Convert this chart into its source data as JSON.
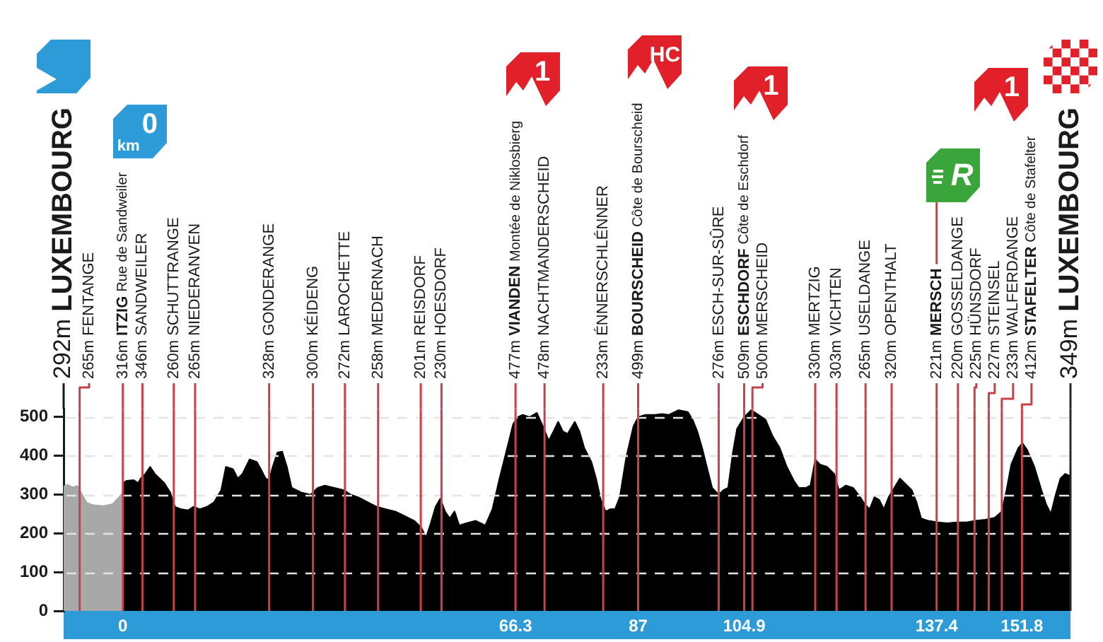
{
  "chart_data": {
    "type": "area",
    "xlim": [
      -10,
      160
    ],
    "xticks": [
      0,
      66.3,
      87,
      104.9,
      137.4,
      151.8
    ],
    "ylim": [
      0,
      520
    ],
    "yticks": [
      0,
      100,
      200,
      300,
      400,
      500
    ],
    "grid": "y",
    "series": [
      {
        "color": "#a8a8a8",
        "x": [
          -10,
          -9.3,
          -8.5,
          -7.7,
          -6.9,
          -6.1,
          -4.9,
          -3.3,
          -1.7,
          -0.5,
          0
        ],
        "values": [
          320,
          325,
          318,
          322,
          300,
          278,
          272,
          270,
          275,
          295,
          305
        ]
      },
      {
        "color": "#000000",
        "x": [
          0,
          0.6,
          1.8,
          2.6,
          3.0,
          3.8,
          4.6,
          5.4,
          6.2,
          7.0,
          8.0,
          8.8,
          9.8,
          11.0,
          11.9,
          13.0,
          14.2,
          15.4,
          16.6,
          17.4,
          18.6,
          19.4,
          20.2,
          21.4,
          22.6,
          23.3,
          24.1,
          24.7,
          25.3,
          26.1,
          26.9,
          27.7,
          28.5,
          30.1,
          31.7,
          32.9,
          34.1,
          35.7,
          37.3,
          38.5,
          39.7,
          41.3,
          42.9,
          44.4,
          46.0,
          47.6,
          49.2,
          50.4,
          51.2,
          52.0,
          52.8,
          53.6,
          54.4,
          55.2,
          56.0,
          56.8,
          58.0,
          59.6,
          61.2,
          62.4,
          63.5,
          64.7,
          65.9,
          66.7,
          67.5,
          68.7,
          69.9,
          71.1,
          71.9,
          72.7,
          73.5,
          74.3,
          75.1,
          76.3,
          77.1,
          77.9,
          79.1,
          79.9,
          80.7,
          81.5,
          82.3,
          83.1,
          83.9,
          85.0,
          86.2,
          87.0,
          88.2,
          89.8,
          91.0,
          92.2,
          93.8,
          95.4,
          96.2,
          97.0,
          97.8,
          98.6,
          99.5,
          100.6,
          101.4,
          102.2,
          103.0,
          103.7,
          104.9,
          106.1,
          107.3,
          108.5,
          109.7,
          110.9,
          112.1,
          113.3,
          114.1,
          115.3,
          116.1,
          116.9,
          117.7,
          118.9,
          120.1,
          120.9,
          122.1,
          123.3,
          124.5,
          125.3,
          126.1,
          126.9,
          127.7,
          128.5,
          129.3,
          130.5,
          131.2,
          132.0,
          133.2,
          134.0,
          134.8,
          136.0,
          137.6,
          139.2,
          140.8,
          142.4,
          144.0,
          145.6,
          147.2,
          148.4,
          149.2,
          150.0,
          151.2,
          151.9,
          152.7,
          153.9,
          155.1,
          155.9,
          156.7,
          157.5,
          158.3,
          159.1,
          160
        ],
        "values": [
          329,
          335,
          337,
          329,
          341,
          353,
          371,
          353,
          341,
          329,
          305,
          268,
          262,
          259,
          268,
          262,
          268,
          280,
          311,
          371,
          365,
          341,
          353,
          390,
          384,
          365,
          341,
          337,
          371,
          408,
          410,
          371,
          317,
          305,
          299,
          317,
          323,
          317,
          311,
          299,
          293,
          280,
          268,
          262,
          256,
          244,
          232,
          214,
          189,
          226,
          268,
          289,
          256,
          238,
          256,
          220,
          226,
          232,
          220,
          262,
          335,
          408,
          481,
          499,
          505,
          499,
          510,
          469,
          438,
          462,
          487,
          462,
          456,
          487,
          462,
          420,
          384,
          341,
          286,
          256,
          262,
          262,
          293,
          396,
          475,
          499,
          505,
          505,
          507,
          505,
          517,
          512,
          493,
          462,
          420,
          371,
          317,
          299,
          311,
          317,
          408,
          469,
          499,
          517,
          505,
          493,
          450,
          420,
          371,
          335,
          317,
          317,
          323,
          390,
          377,
          371,
          353,
          311,
          323,
          317,
          293,
          274,
          262,
          293,
          286,
          262,
          293,
          323,
          341,
          329,
          311,
          280,
          238,
          232,
          228,
          226,
          228,
          228,
          232,
          235,
          240,
          256,
          311,
          377,
          420,
          432,
          414,
          371,
          311,
          274,
          250,
          299,
          341,
          353,
          347
        ]
      }
    ],
    "ref_lines": [
      {
        "axis": "x",
        "value": -7.3,
        "label": "265m FENTANGE",
        "color": "#c8414a"
      },
      {
        "axis": "x",
        "value": 0,
        "label": "316m ITZIG Rue de Sandweiler",
        "color": "#c8414a"
      },
      {
        "axis": "x",
        "value": 3.3,
        "label": "346m SANDWEILER",
        "color": "#c8414a"
      },
      {
        "axis": "x",
        "value": 8.6,
        "label": "260m SCHUTTRANGE",
        "color": "#c8414a"
      },
      {
        "axis": "x",
        "value": 12.2,
        "label": "265m NIEDERANVEN",
        "color": "#c8414a"
      },
      {
        "axis": "x",
        "value": 24.7,
        "label": "328m GONDERANGE",
        "color": "#c8414a"
      },
      {
        "axis": "x",
        "value": 32.1,
        "label": "300m KÉIDENG",
        "color": "#c8414a"
      },
      {
        "axis": "x",
        "value": 37.5,
        "label": "272m LAROCHETTE",
        "color": "#c8414a"
      },
      {
        "axis": "x",
        "value": 43.1,
        "label": "258m MEDERNACH",
        "color": "#c8414a"
      },
      {
        "axis": "x",
        "value": 50.3,
        "label": "201m REISDORF",
        "color": "#c8414a"
      },
      {
        "axis": "x",
        "value": 53.8,
        "label": "230m HOESDORF",
        "color": "#c8414a"
      },
      {
        "axis": "x",
        "value": 66.3,
        "label": "477m VIANDEN Montée de Niklosbierg",
        "color": "#c8414a"
      },
      {
        "axis": "x",
        "value": 71.2,
        "label": "478m NACHTMANDERSCHEID",
        "color": "#c8414a"
      },
      {
        "axis": "x",
        "value": 81.1,
        "label": "233m ÉNNERSCHLÉNNER",
        "color": "#c8414a"
      },
      {
        "axis": "x",
        "value": 87,
        "label": "499m BOURSCHEID Côte de Bourscheid",
        "color": "#c8414a"
      },
      {
        "axis": "x",
        "value": 100.6,
        "label": "276m ESCH-SUR-SÛRE",
        "color": "#c8414a"
      },
      {
        "axis": "x",
        "value": 104.9,
        "label": "509m ESCHDORF Côte de Eschdorf",
        "color": "#c8414a"
      },
      {
        "axis": "x",
        "value": 106.3,
        "label": "500m MERSCHEID",
        "color": "#c8414a"
      },
      {
        "axis": "x",
        "value": 116.9,
        "label": "330m MERTZIG",
        "color": "#c8414a"
      },
      {
        "axis": "x",
        "value": 120.5,
        "label": "303m VICHTEN",
        "color": "#c8414a"
      },
      {
        "axis": "x",
        "value": 125.4,
        "label": "265m USELDANGE",
        "color": "#c8414a"
      },
      {
        "axis": "x",
        "value": 129.8,
        "label": "320m OPENTHALT",
        "color": "#c8414a"
      },
      {
        "axis": "x",
        "value": 137.4,
        "label": "221m MERSCH",
        "color": "#c8414a"
      },
      {
        "axis": "x",
        "value": 141.0,
        "label": "220m GOSSELDANGE",
        "color": "#c8414a"
      },
      {
        "axis": "x",
        "value": 143.8,
        "label": "225m HÜNSDORF",
        "color": "#c8414a"
      },
      {
        "axis": "x",
        "value": 146.2,
        "label": "227m STEINSEL",
        "color": "#c8414a"
      },
      {
        "axis": "x",
        "value": 148.4,
        "label": "233m WALFERDANGE",
        "color": "#c8414a"
      },
      {
        "axis": "x",
        "value": 151.8,
        "label": "412m STAFELTER Côte de Stafelter",
        "color": "#c8414a"
      },
      {
        "axis": "x",
        "value": 160,
        "label": "349m LUXEMBOURG",
        "color": "#262626"
      }
    ],
    "annotations": [
      "292m LUXEMBOURG",
      "0",
      "km",
      "1",
      "HC",
      "1",
      "R",
      "1"
    ]
  }
}
